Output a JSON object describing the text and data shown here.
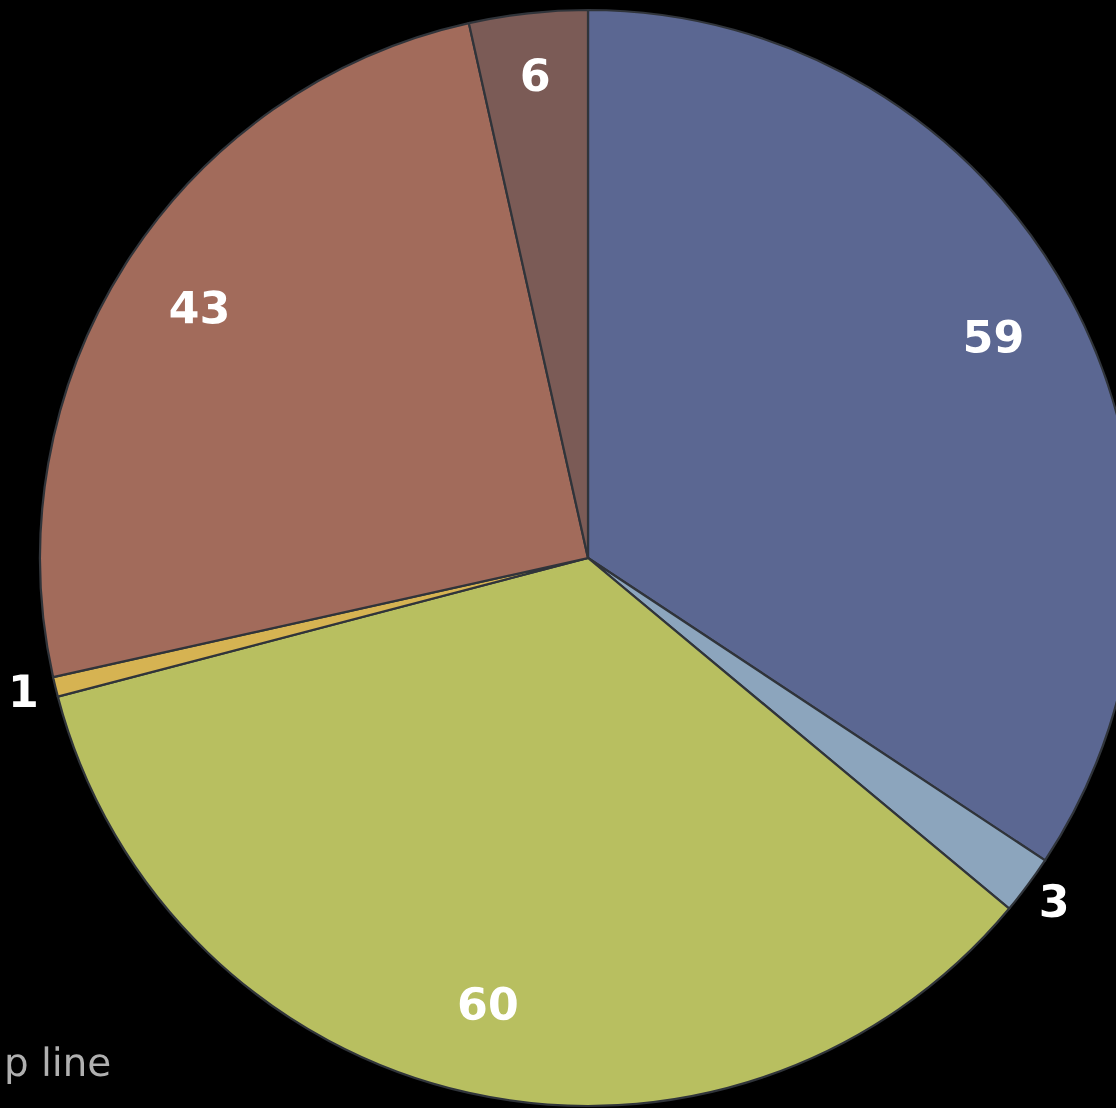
{
  "chart_data": {
    "type": "pie",
    "categories": [
      null,
      null,
      null,
      null,
      null,
      null
    ],
    "values": [
      59,
      3,
      60,
      1,
      43,
      6
    ],
    "colors": [
      "#5b6792",
      "#8ca5bd",
      "#b8bf60",
      "#d6b352",
      "#a26b5b",
      "#7b5b56"
    ],
    "data_labels": true,
    "annotations": [
      "p line"
    ]
  }
}
